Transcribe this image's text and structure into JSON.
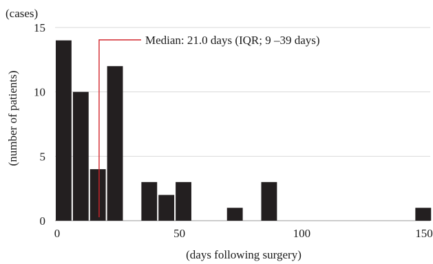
{
  "chart_data": {
    "type": "bar",
    "y_unit": "(cases)",
    "ylabel": "(number of patients)",
    "xlabel": "(days following surgery)",
    "xlim": [
      0,
      150
    ],
    "ylim": [
      0,
      15
    ],
    "x_ticks": [
      "0",
      "50",
      "100",
      "150"
    ],
    "y_ticks": [
      "0",
      "5",
      "10",
      "15"
    ],
    "x_tick_values": [
      0,
      50,
      100,
      150
    ],
    "y_tick_values": [
      0,
      5,
      10,
      15
    ],
    "bin_width": 7,
    "bins": [
      {
        "x_start": 0,
        "x_end": 7,
        "value": 14
      },
      {
        "x_start": 7,
        "x_end": 14,
        "value": 10
      },
      {
        "x_start": 14,
        "x_end": 21,
        "value": 4
      },
      {
        "x_start": 21,
        "x_end": 28,
        "value": 12
      },
      {
        "x_start": 35,
        "x_end": 42,
        "value": 3
      },
      {
        "x_start": 42,
        "x_end": 49,
        "value": 2
      },
      {
        "x_start": 49,
        "x_end": 56,
        "value": 3
      },
      {
        "x_start": 70,
        "x_end": 77,
        "value": 1
      },
      {
        "x_start": 84,
        "x_end": 91,
        "value": 3
      },
      {
        "x_start": 147,
        "x_end": 154,
        "value": 1
      }
    ],
    "grid": true,
    "bar_color": "#231f20",
    "annotation": {
      "text": "Median: 21.0 days (IQR; 9 –39 days)",
      "x": 18,
      "color": "#d2232a"
    }
  }
}
